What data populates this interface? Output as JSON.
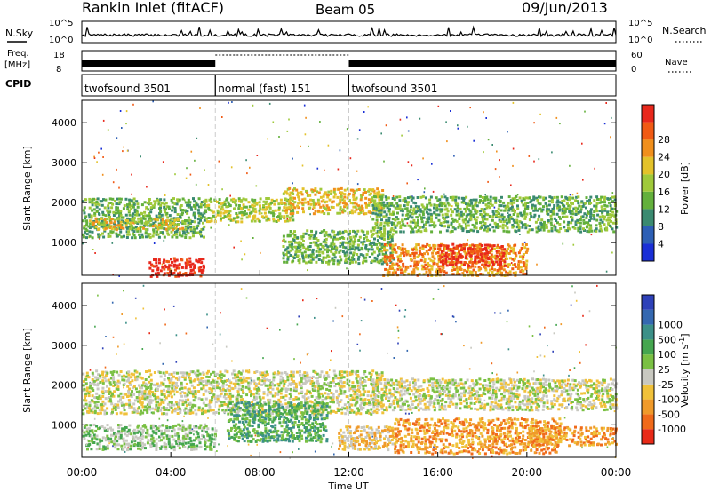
{
  "header": {
    "title": "Rankin Inlet (fitACF)",
    "beam": "Beam 05",
    "date": "09/Jun/2013"
  },
  "noise_panel": {
    "left_label": "N.Sky",
    "right_label": "N.Search",
    "left_ticks": [
      "10^5",
      "10^0"
    ],
    "right_ticks": [
      "10^5",
      "10^0"
    ]
  },
  "freq_panel": {
    "left_label_1": "Freq.",
    "left_label_2": "[MHz]",
    "right_label": "Nave",
    "left_ticks": [
      "18",
      "8"
    ],
    "right_ticks": [
      "60",
      "0"
    ]
  },
  "cpid": {
    "label": "CPID",
    "modes": [
      {
        "name": "twofsound 3501",
        "start_hr": 0,
        "end_hr": 6
      },
      {
        "name": "normal (fast) 151",
        "start_hr": 6,
        "end_hr": 12
      },
      {
        "name": "twofsound 3501",
        "start_hr": 12,
        "end_hr": 24
      }
    ]
  },
  "power_colorbar": {
    "label": "Power [dB]",
    "ticks": [
      "4",
      "8",
      "12",
      "16",
      "20",
      "24",
      "28"
    ],
    "colors": [
      "#1a2fd6",
      "#2d5fb5",
      "#3a8a70",
      "#63b03c",
      "#9fc93a",
      "#e3c22a",
      "#f08f1c",
      "#f05a14",
      "#e8281c"
    ]
  },
  "velocity_colorbar": {
    "label": "Velocity [m s",
    "label_sup": "-1",
    "label_end": "]",
    "ticks": [
      "1000",
      "500",
      "100",
      "25",
      "-25",
      "-100",
      "-500",
      "-1000"
    ],
    "colors": [
      "#2e41b8",
      "#3468b0",
      "#3c9088",
      "#45a64f",
      "#7ac043",
      "#c8c8c0",
      "#f0c13a",
      "#f09a2a",
      "#f06a1a",
      "#e82a18"
    ]
  },
  "chart_data": [
    {
      "type": "heatmap",
      "name": "Power",
      "x_ticks": [
        "00:00",
        "04:00",
        "08:00",
        "12:00",
        "16:00",
        "20:00",
        "00:00"
      ],
      "xlim_hours": [
        0,
        24
      ],
      "ylabel": "Slant Range [km]",
      "y_ticks": [
        1000,
        2000,
        3000,
        4000
      ],
      "ylim_km": [
        180,
        4560
      ],
      "regions": [
        {
          "t0": 0.0,
          "t1": 5.5,
          "r0": 1150,
          "r1": 2150,
          "level": 3
        },
        {
          "t0": 0.3,
          "t1": 4.5,
          "r0": 1350,
          "r1": 1650,
          "level": 5
        },
        {
          "t0": 3.0,
          "t1": 5.5,
          "r0": 180,
          "r1": 650,
          "level": 8
        },
        {
          "t0": 5.5,
          "t1": 9.5,
          "r0": 1550,
          "r1": 2150,
          "level": 4
        },
        {
          "t0": 9.0,
          "t1": 13.5,
          "r0": 1750,
          "r1": 2400,
          "level": 5
        },
        {
          "t0": 9.0,
          "t1": 14.0,
          "r0": 500,
          "r1": 1350,
          "level": 3
        },
        {
          "t0": 13.0,
          "t1": 24.0,
          "r0": 1300,
          "r1": 2200,
          "level": 3
        },
        {
          "t0": 13.5,
          "t1": 20.0,
          "r0": 200,
          "r1": 1000,
          "level": 6
        },
        {
          "t0": 16.0,
          "t1": 19.0,
          "r0": 450,
          "r1": 1000,
          "level": 8
        }
      ]
    },
    {
      "type": "heatmap",
      "name": "Velocity",
      "x_ticks": [
        "00:00",
        "04:00",
        "08:00",
        "12:00",
        "16:00",
        "20:00",
        "00:00"
      ],
      "xlim_hours": [
        0,
        24
      ],
      "xlabel": "Time UT",
      "ylabel": "Slant Range [km]",
      "y_ticks": [
        1000,
        2000,
        3000,
        4000
      ],
      "ylim_km": [
        180,
        4560
      ],
      "regions": [
        {
          "t0": 0.0,
          "t1": 13.5,
          "r0": 1300,
          "r1": 2400,
          "level": 5
        },
        {
          "t0": 13.0,
          "t1": 24.0,
          "r0": 1400,
          "r1": 2200,
          "level": 5
        },
        {
          "t0": 0.0,
          "t1": 6.0,
          "r0": 400,
          "r1": 1050,
          "level": 4
        },
        {
          "t0": 6.5,
          "t1": 11.0,
          "r0": 600,
          "r1": 1600,
          "level": 3
        },
        {
          "t0": 11.5,
          "t1": 14.0,
          "r0": 400,
          "r1": 1000,
          "level": 6
        },
        {
          "t0": 14.0,
          "t1": 21.5,
          "r0": 300,
          "r1": 1200,
          "level": 7
        },
        {
          "t0": 20.0,
          "t1": 24.0,
          "r0": 500,
          "r1": 1000,
          "level": 7
        }
      ]
    }
  ]
}
